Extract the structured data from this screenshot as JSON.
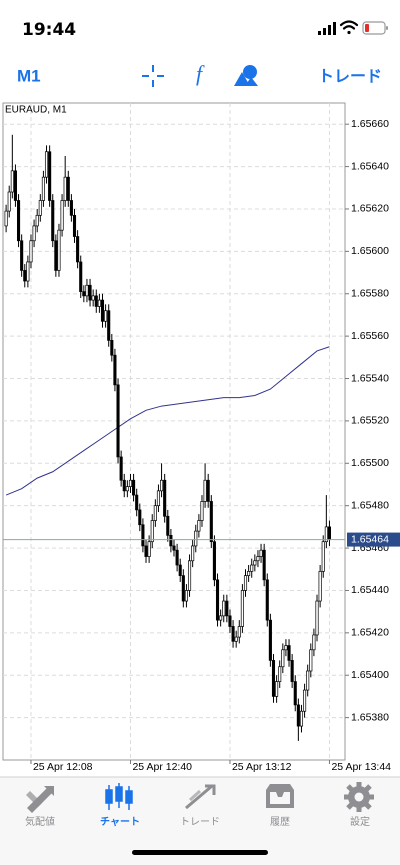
{
  "status": {
    "time": "19:44"
  },
  "toolbar": {
    "timeframe": "M1",
    "function_icon": "f",
    "trade": "トレード"
  },
  "tabs": [
    {
      "label": "気配値",
      "active": false
    },
    {
      "label": "チャート",
      "active": true
    },
    {
      "label": "トレード",
      "active": false
    },
    {
      "label": "履歴",
      "active": false
    },
    {
      "label": "設定",
      "active": false
    }
  ],
  "chart_data": {
    "type": "candlestick",
    "title": "EURAUD, M1",
    "x": [
      "12:00",
      "12:01",
      "12:02",
      "12:03",
      "12:04",
      "12:05",
      "12:06",
      "12:07",
      "12:08",
      "12:09",
      "12:10",
      "12:11",
      "12:12",
      "12:13",
      "12:14",
      "12:15",
      "12:16",
      "12:17",
      "12:18",
      "12:19",
      "12:20",
      "12:21",
      "12:22",
      "12:23",
      "12:24",
      "12:25",
      "12:26",
      "12:27",
      "12:28",
      "12:29",
      "12:30",
      "12:31",
      "12:32",
      "12:33",
      "12:34",
      "12:35",
      "12:36",
      "12:37",
      "12:38",
      "12:39",
      "12:40",
      "12:41",
      "12:42",
      "12:43",
      "12:44",
      "12:45",
      "12:46",
      "12:47",
      "12:48",
      "12:49",
      "12:50",
      "12:51",
      "12:52",
      "12:53",
      "12:54",
      "12:55",
      "12:56",
      "12:57",
      "12:58",
      "12:59",
      "13:00",
      "13:01",
      "13:02",
      "13:03",
      "13:04",
      "13:05",
      "13:06",
      "13:07",
      "13:08",
      "13:09",
      "13:10",
      "13:11",
      "13:12",
      "13:13",
      "13:14",
      "13:15",
      "13:16",
      "13:17",
      "13:18",
      "13:19",
      "13:20",
      "13:21",
      "13:22",
      "13:23",
      "13:24",
      "13:25",
      "13:26",
      "13:27",
      "13:28",
      "13:29",
      "13:30",
      "13:31",
      "13:32",
      "13:33",
      "13:34",
      "13:35",
      "13:36",
      "13:37",
      "13:38",
      "13:39",
      "13:40",
      "13:41",
      "13:42",
      "13:43",
      "13:44"
    ],
    "open": [
      1.65612,
      1.65619,
      1.65628,
      1.65638,
      1.65624,
      1.65605,
      1.65591,
      1.65586,
      1.65595,
      1.65605,
      1.65612,
      1.65617,
      1.65624,
      1.65635,
      1.65647,
      1.65624,
      1.65605,
      1.65591,
      1.6561,
      1.65624,
      1.65635,
      1.65624,
      1.65617,
      1.65607,
      1.65595,
      1.65581,
      1.65579,
      1.65584,
      1.65577,
      1.65579,
      1.65574,
      1.65577,
      1.65567,
      1.65572,
      1.65558,
      1.65551,
      1.65537,
      1.65503,
      1.65492,
      1.65487,
      1.65489,
      1.65492,
      1.65485,
      1.65478,
      1.65471,
      1.65461,
      1.65456,
      1.65463,
      1.65473,
      1.6548,
      1.65487,
      1.65492,
      1.65475,
      1.65466,
      1.65461,
      1.65459,
      1.65452,
      1.65447,
      1.65435,
      1.6544,
      1.65454,
      1.65461,
      1.65468,
      1.65473,
      1.65482,
      1.65492,
      1.65482,
      1.65463,
      1.65445,
      1.65426,
      1.65428,
      1.65435,
      1.65428,
      1.65423,
      1.65416,
      1.65418,
      1.65423,
      1.6544,
      1.65447,
      1.65449,
      1.65452,
      1.65454,
      1.65456,
      1.65459,
      1.65445,
      1.65426,
      1.65407,
      1.6539,
      1.65397,
      1.65404,
      1.65412,
      1.65414,
      1.65407,
      1.65397,
      1.65386,
      1.65376,
      1.65383,
      1.65393,
      1.65402,
      1.65412,
      1.65419,
      1.65435,
      1.65449,
      1.65463,
      1.6547
    ],
    "high": [
      1.65622,
      1.65631,
      1.65655,
      1.65641,
      1.65627,
      1.65608,
      1.65594,
      1.65598,
      1.65608,
      1.65615,
      1.6562,
      1.65627,
      1.65638,
      1.6565,
      1.6565,
      1.65627,
      1.65608,
      1.65613,
      1.65627,
      1.65645,
      1.65638,
      1.65627,
      1.6562,
      1.6561,
      1.65598,
      1.65584,
      1.65587,
      1.65587,
      1.65582,
      1.65582,
      1.6558,
      1.6558,
      1.65575,
      1.65575,
      1.65561,
      1.65554,
      1.6554,
      1.65506,
      1.65495,
      1.65492,
      1.65495,
      1.65495,
      1.65488,
      1.65481,
      1.65474,
      1.65464,
      1.65466,
      1.65476,
      1.65483,
      1.6549,
      1.655,
      1.65495,
      1.65478,
      1.65469,
      1.65464,
      1.65462,
      1.65455,
      1.6545,
      1.65443,
      1.65457,
      1.65464,
      1.65471,
      1.65476,
      1.65485,
      1.655,
      1.65495,
      1.65485,
      1.65466,
      1.65448,
      1.65431,
      1.65438,
      1.65438,
      1.65431,
      1.65426,
      1.65421,
      1.65426,
      1.65443,
      1.6545,
      1.65452,
      1.65455,
      1.65457,
      1.65459,
      1.65462,
      1.65462,
      1.65448,
      1.65429,
      1.6541,
      1.654,
      1.65407,
      1.65415,
      1.65417,
      1.65417,
      1.6541,
      1.654,
      1.65389,
      1.65386,
      1.65396,
      1.65405,
      1.65415,
      1.65422,
      1.65438,
      1.65452,
      1.65466,
      1.65485,
      1.65473
    ],
    "low": [
      1.65609,
      1.65616,
      1.65625,
      1.65621,
      1.65602,
      1.65588,
      1.65583,
      1.65583,
      1.65592,
      1.65602,
      1.65609,
      1.65614,
      1.65621,
      1.65632,
      1.65621,
      1.65602,
      1.65588,
      1.65588,
      1.65607,
      1.65621,
      1.65621,
      1.65614,
      1.65604,
      1.65592,
      1.65578,
      1.65576,
      1.65576,
      1.65574,
      1.65574,
      1.65571,
      1.65571,
      1.65564,
      1.65564,
      1.65555,
      1.65548,
      1.65534,
      1.655,
      1.65489,
      1.65484,
      1.65484,
      1.65486,
      1.65482,
      1.65475,
      1.65468,
      1.65458,
      1.65453,
      1.65453,
      1.6546,
      1.6547,
      1.65477,
      1.65484,
      1.65472,
      1.65463,
      1.65458,
      1.65456,
      1.65449,
      1.65444,
      1.65432,
      1.65432,
      1.65437,
      1.65451,
      1.65458,
      1.65465,
      1.6547,
      1.65479,
      1.65479,
      1.6546,
      1.65442,
      1.65423,
      1.65423,
      1.65425,
      1.65425,
      1.6542,
      1.65413,
      1.65413,
      1.65415,
      1.6542,
      1.65437,
      1.65444,
      1.65446,
      1.65449,
      1.65451,
      1.65453,
      1.65442,
      1.65423,
      1.65404,
      1.65387,
      1.65387,
      1.65394,
      1.65401,
      1.65409,
      1.65404,
      1.65394,
      1.65383,
      1.65369,
      1.65373,
      1.6538,
      1.6539,
      1.65399,
      1.65409,
      1.65416,
      1.65432,
      1.65446,
      1.6546,
      1.65461
    ],
    "close": [
      1.65619,
      1.65628,
      1.65638,
      1.65624,
      1.65605,
      1.65591,
      1.65586,
      1.65595,
      1.65605,
      1.65612,
      1.65617,
      1.65624,
      1.65635,
      1.65647,
      1.65624,
      1.65605,
      1.65591,
      1.6561,
      1.65624,
      1.65635,
      1.65624,
      1.65617,
      1.65607,
      1.65595,
      1.65581,
      1.65579,
      1.65584,
      1.65577,
      1.65579,
      1.65574,
      1.65577,
      1.65567,
      1.65572,
      1.65558,
      1.65551,
      1.65537,
      1.65503,
      1.65492,
      1.65487,
      1.65489,
      1.65492,
      1.65485,
      1.65478,
      1.65471,
      1.65461,
      1.65456,
      1.65463,
      1.65473,
      1.6548,
      1.65487,
      1.65492,
      1.65475,
      1.65466,
      1.65461,
      1.65459,
      1.65452,
      1.65447,
      1.65435,
      1.6544,
      1.65454,
      1.65461,
      1.65468,
      1.65473,
      1.65482,
      1.65492,
      1.65482,
      1.65463,
      1.65445,
      1.65426,
      1.65428,
      1.65435,
      1.65428,
      1.65423,
      1.65416,
      1.65418,
      1.65423,
      1.6544,
      1.65447,
      1.65449,
      1.65452,
      1.65454,
      1.65456,
      1.65459,
      1.65445,
      1.65426,
      1.65407,
      1.6539,
      1.65397,
      1.65404,
      1.65412,
      1.65414,
      1.65407,
      1.65397,
      1.65386,
      1.65376,
      1.65383,
      1.65393,
      1.65402,
      1.65412,
      1.65419,
      1.65435,
      1.65449,
      1.65463,
      1.6547,
      1.65464
    ],
    "up_color": "#ffffff",
    "down_color": "#000000",
    "edge_color": "#000000",
    "xlim": [
      "11:59",
      "13:49"
    ],
    "xticks": [
      {
        "value": "12:08",
        "label": "25 Apr 12:08"
      },
      {
        "value": "12:40",
        "label": "25 Apr 12:40"
      },
      {
        "value": "13:12",
        "label": "25 Apr 13:12"
      },
      {
        "value": "13:44",
        "label": "25 Apr 13:44"
      }
    ],
    "ylim": [
      1.6536,
      1.6567
    ],
    "yticks": [
      {
        "value": 1.6566,
        "label": "1.65660"
      },
      {
        "value": 1.6564,
        "label": "1.65640"
      },
      {
        "value": 1.6562,
        "label": "1.65620"
      },
      {
        "value": 1.656,
        "label": "1.65600"
      },
      {
        "value": 1.6558,
        "label": "1.65580"
      },
      {
        "value": 1.6556,
        "label": "1.65560"
      },
      {
        "value": 1.6554,
        "label": "1.65540"
      },
      {
        "value": 1.6552,
        "label": "1.65520"
      },
      {
        "value": 1.655,
        "label": "1.65500"
      },
      {
        "value": 1.6548,
        "label": "1.65480"
      },
      {
        "value": 1.6546,
        "label": "1.65460"
      },
      {
        "value": 1.6544,
        "label": "1.65440"
      },
      {
        "value": 1.6542,
        "label": "1.65420"
      },
      {
        "value": 1.654,
        "label": "1.65400"
      },
      {
        "value": 1.6538,
        "label": "1.65380"
      }
    ],
    "grid": true,
    "moving_average": {
      "color": "#33338f",
      "x": [
        "12:00",
        "12:05",
        "12:10",
        "12:15",
        "12:20",
        "12:25",
        "12:30",
        "12:35",
        "12:40",
        "12:45",
        "12:50",
        "12:55",
        "13:00",
        "13:05",
        "13:10",
        "13:15",
        "13:20",
        "13:25",
        "13:30",
        "13:35",
        "13:40",
        "13:44"
      ],
      "values": [
        1.65485,
        1.65488,
        1.65493,
        1.65496,
        1.65501,
        1.65506,
        1.65511,
        1.65516,
        1.65521,
        1.65525,
        1.65527,
        1.65528,
        1.65529,
        1.6553,
        1.65531,
        1.65531,
        1.65532,
        1.65535,
        1.65541,
        1.65547,
        1.65553,
        1.65555
      ]
    },
    "last_price": 1.65464,
    "last_price_color": "#2b4c8c"
  }
}
